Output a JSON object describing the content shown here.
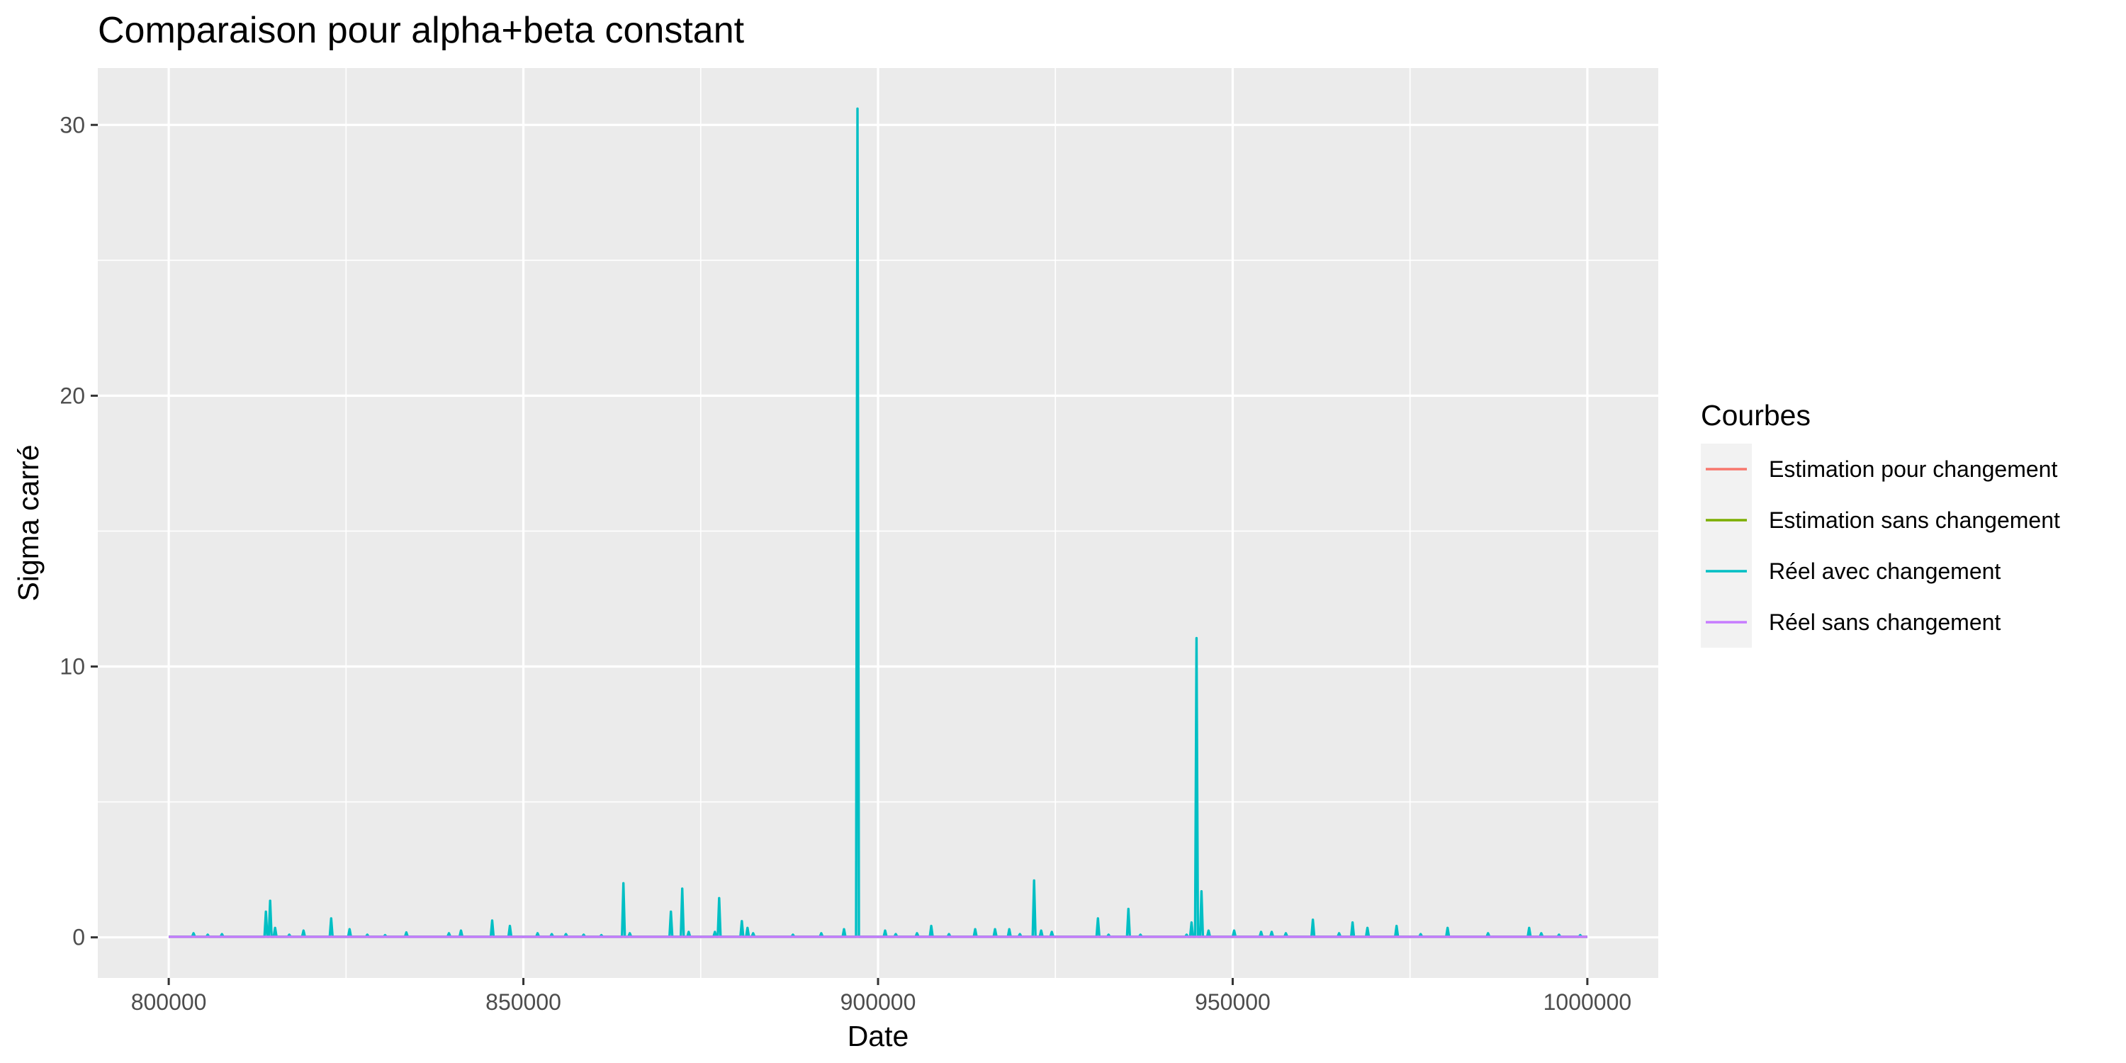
{
  "chart_data": {
    "type": "line",
    "title": "Comparaison pour alpha+beta constant",
    "xlabel": "Date",
    "ylabel": "Sigma carré",
    "xlim": [
      790000,
      1010000
    ],
    "ylim": [
      -1.5,
      32.1
    ],
    "x_ticks": [
      800000,
      850000,
      900000,
      950000,
      1000000
    ],
    "x_tick_labels": [
      "800000",
      "850000",
      "900000",
      "950000",
      "1000000"
    ],
    "y_ticks": [
      0,
      10,
      20,
      30
    ],
    "y_tick_labels": [
      "0",
      "10",
      "20",
      "30"
    ],
    "grid": true,
    "background": "#ebebeb",
    "legend": {
      "title": "Courbes",
      "position": "right",
      "entries": [
        {
          "label": "Estimation pour changement",
          "color": "#f8766d"
        },
        {
          "label": "Estimation sans changement",
          "color": "#7cae00"
        },
        {
          "label": "Réel avec changement",
          "color": "#00bfc4"
        },
        {
          "label": "Réel sans changement",
          "color": "#c77cff"
        }
      ]
    },
    "series": [
      {
        "name": "Estimation pour changement",
        "color": "#f8766d",
        "x": [
          800000,
          1000000
        ],
        "y": [
          0.02,
          0.02
        ]
      },
      {
        "name": "Estimation sans changement",
        "color": "#7cae00",
        "x": [
          800000,
          1000000
        ],
        "y": [
          0.02,
          0.02
        ]
      },
      {
        "name": "Réel avec changement",
        "color": "#00bfc4",
        "baseline": 0.02,
        "x_range": [
          800000,
          1000000
        ],
        "spikes": [
          [
            803500,
            0.15
          ],
          [
            805500,
            0.1
          ],
          [
            807500,
            0.12
          ],
          [
            813700,
            0.95
          ],
          [
            814300,
            1.35
          ],
          [
            815000,
            0.35
          ],
          [
            817000,
            0.1
          ],
          [
            819000,
            0.25
          ],
          [
            822900,
            0.7
          ],
          [
            825500,
            0.3
          ],
          [
            828000,
            0.1
          ],
          [
            830500,
            0.08
          ],
          [
            833500,
            0.18
          ],
          [
            839500,
            0.15
          ],
          [
            841200,
            0.25
          ],
          [
            845600,
            0.62
          ],
          [
            848100,
            0.42
          ],
          [
            852000,
            0.15
          ],
          [
            854000,
            0.12
          ],
          [
            856000,
            0.12
          ],
          [
            858500,
            0.1
          ],
          [
            861000,
            0.08
          ],
          [
            864100,
            2.0
          ],
          [
            865000,
            0.15
          ],
          [
            870800,
            0.95
          ],
          [
            872400,
            1.8
          ],
          [
            873300,
            0.2
          ],
          [
            877000,
            0.2
          ],
          [
            877600,
            1.45
          ],
          [
            880800,
            0.6
          ],
          [
            881600,
            0.35
          ],
          [
            882400,
            0.15
          ],
          [
            888000,
            0.1
          ],
          [
            892000,
            0.15
          ],
          [
            895200,
            0.3
          ],
          [
            897100,
            30.6
          ],
          [
            901000,
            0.25
          ],
          [
            902500,
            0.12
          ],
          [
            905500,
            0.15
          ],
          [
            907500,
            0.42
          ],
          [
            910000,
            0.12
          ],
          [
            913700,
            0.3
          ],
          [
            916500,
            0.3
          ],
          [
            918500,
            0.3
          ],
          [
            920000,
            0.12
          ],
          [
            922000,
            2.1
          ],
          [
            923000,
            0.25
          ],
          [
            924500,
            0.2
          ],
          [
            931000,
            0.7
          ],
          [
            932500,
            0.1
          ],
          [
            935300,
            1.05
          ],
          [
            937000,
            0.1
          ],
          [
            943500,
            0.1
          ],
          [
            944200,
            0.55
          ],
          [
            944900,
            11.05
          ],
          [
            945600,
            1.7
          ],
          [
            946600,
            0.25
          ],
          [
            950200,
            0.25
          ],
          [
            954000,
            0.2
          ],
          [
            955500,
            0.2
          ],
          [
            957500,
            0.15
          ],
          [
            961300,
            0.65
          ],
          [
            965000,
            0.15
          ],
          [
            966900,
            0.55
          ],
          [
            969000,
            0.35
          ],
          [
            973100,
            0.42
          ],
          [
            976500,
            0.12
          ],
          [
            980300,
            0.35
          ],
          [
            986000,
            0.15
          ],
          [
            991800,
            0.35
          ],
          [
            993500,
            0.15
          ],
          [
            996000,
            0.1
          ],
          [
            999000,
            0.08
          ]
        ]
      },
      {
        "name": "Réel sans changement",
        "color": "#c77cff",
        "x": [
          800000,
          1000000
        ],
        "y": [
          0.02,
          0.02
        ]
      }
    ]
  }
}
